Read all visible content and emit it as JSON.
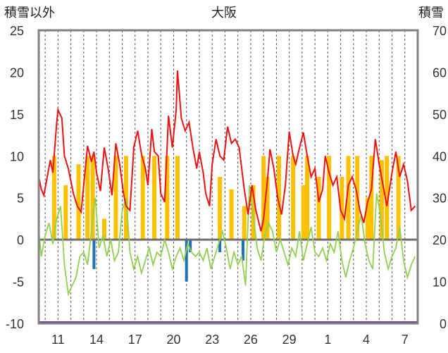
{
  "chart_data": {
    "type": "line",
    "title": "大阪",
    "y_left_label": "積雪以外",
    "y_right_label": "積雪",
    "y_left_ticks": [
      "25",
      "20",
      "15",
      "10",
      "5",
      "0",
      "-5",
      "-10"
    ],
    "y_right_ticks": [
      "70",
      "60",
      "50",
      "40",
      "30",
      "20",
      "10",
      "0"
    ],
    "x_ticks": [
      "11",
      "14",
      "17",
      "20",
      "23",
      "26",
      "29",
      "1",
      "4",
      "7"
    ],
    "y_left_range": [
      -10,
      25
    ],
    "y_right_range": [
      0,
      70
    ],
    "grid": "vertical dashed",
    "colors": {
      "frame": "#808080",
      "zero_line": "#707070",
      "temperature": "#ee1111",
      "temp_diff": "#92d050",
      "sunshine": "#ffc000",
      "precip": "#1a6fb5",
      "snow": "#7030a0"
    },
    "series": [
      {
        "key": "temperature",
        "type": "line",
        "points": [
          [
            9.5,
            7.5
          ],
          [
            9.7,
            6.0
          ],
          [
            9.9,
            5.3
          ],
          [
            10.4,
            9.5
          ],
          [
            10.6,
            8.0
          ],
          [
            10.9,
            14.0
          ],
          [
            11.0,
            15.5
          ],
          [
            11.3,
            14.5
          ],
          [
            11.5,
            10.0
          ],
          [
            11.8,
            8.5
          ],
          [
            12.2,
            5.5
          ],
          [
            12.5,
            4.0
          ],
          [
            12.8,
            3.3
          ],
          [
            13.0,
            6.5
          ],
          [
            13.3,
            11.2
          ],
          [
            13.6,
            9.3
          ],
          [
            13.8,
            10.5
          ],
          [
            14.0,
            8.0
          ],
          [
            14.3,
            5.8
          ],
          [
            14.6,
            11.0
          ],
          [
            14.9,
            8.5
          ],
          [
            15.2,
            5.3
          ],
          [
            15.5,
            11.5
          ],
          [
            15.8,
            9.0
          ],
          [
            16.1,
            5.5
          ],
          [
            16.3,
            4.0
          ],
          [
            16.6,
            3.5
          ],
          [
            16.9,
            11.0
          ],
          [
            17.2,
            13.0
          ],
          [
            17.5,
            10.2
          ],
          [
            17.8,
            8.5
          ],
          [
            18.0,
            6.5
          ],
          [
            18.3,
            13.2
          ],
          [
            18.5,
            10.5
          ],
          [
            18.8,
            10.0
          ],
          [
            19.0,
            5.5
          ],
          [
            19.3,
            4.5
          ],
          [
            19.6,
            14.8
          ],
          [
            19.9,
            11.0
          ],
          [
            20.2,
            15.5
          ],
          [
            20.3,
            20.2
          ],
          [
            20.6,
            14.5
          ],
          [
            20.9,
            13.0
          ],
          [
            21.2,
            14.0
          ],
          [
            21.5,
            11.0
          ],
          [
            21.8,
            8.5
          ],
          [
            22.0,
            10.5
          ],
          [
            22.3,
            8.0
          ],
          [
            22.5,
            5.5
          ],
          [
            22.8,
            4.0
          ],
          [
            23.0,
            9.0
          ],
          [
            23.3,
            12.0
          ],
          [
            23.6,
            10.0
          ],
          [
            23.9,
            9.5
          ],
          [
            24.2,
            13.5
          ],
          [
            24.5,
            11.5
          ],
          [
            24.8,
            12.0
          ],
          [
            25.1,
            11.0
          ],
          [
            25.5,
            6.0
          ],
          [
            25.8,
            3.0
          ],
          [
            26.1,
            6.5
          ],
          [
            26.4,
            3.5
          ],
          [
            26.8,
            1.0
          ],
          [
            27.0,
            2.5
          ],
          [
            27.3,
            7.0
          ],
          [
            27.5,
            10.8
          ],
          [
            27.8,
            8.5
          ],
          [
            28.1,
            5.0
          ],
          [
            28.4,
            3.0
          ],
          [
            28.7,
            6.5
          ],
          [
            29.0,
            12.9
          ],
          [
            29.3,
            10.0
          ],
          [
            29.5,
            9.0
          ],
          [
            29.8,
            11.0
          ],
          [
            30.1,
            12.8
          ],
          [
            30.4,
            10.0
          ],
          [
            30.7,
            7.5
          ],
          [
            31.0,
            8.5
          ],
          [
            31.3,
            4.5
          ],
          [
            31.6,
            6.0
          ],
          [
            31.8,
            10.0
          ],
          [
            32.1,
            8.0
          ],
          [
            32.4,
            6.5
          ],
          [
            32.7,
            7.5
          ],
          [
            33.0,
            3.5
          ],
          [
            33.3,
            2.5
          ],
          [
            33.6,
            6.5
          ],
          [
            33.9,
            7.5
          ],
          [
            34.2,
            6.0
          ],
          [
            34.5,
            3.5
          ],
          [
            34.8,
            2.0
          ],
          [
            35.1,
            4.5
          ],
          [
            35.4,
            6.0
          ],
          [
            35.7,
            12.0
          ],
          [
            36.0,
            9.0
          ],
          [
            36.3,
            6.5
          ],
          [
            36.6,
            4.0
          ],
          [
            37.0,
            8.0
          ],
          [
            37.3,
            10.5
          ],
          [
            37.6,
            7.5
          ],
          [
            37.9,
            9.0
          ],
          [
            38.2,
            7.0
          ],
          [
            38.5,
            3.5
          ],
          [
            38.8,
            4.0
          ]
        ]
      },
      {
        "key": "temp_diff",
        "type": "line",
        "points": [
          [
            9.5,
            1.0
          ],
          [
            9.7,
            -2.0
          ],
          [
            10.0,
            0.5
          ],
          [
            10.3,
            2.0
          ],
          [
            10.6,
            -0.5
          ],
          [
            10.9,
            2.5
          ],
          [
            11.2,
            4.0
          ],
          [
            11.5,
            -3.0
          ],
          [
            11.8,
            -6.5
          ],
          [
            12.1,
            -5.5
          ],
          [
            12.4,
            -4.5
          ],
          [
            12.7,
            -2.0
          ],
          [
            13.0,
            -1.5
          ],
          [
            13.3,
            -3.0
          ],
          [
            13.6,
            1.0
          ],
          [
            13.9,
            5.0
          ],
          [
            14.2,
            -1.0
          ],
          [
            14.5,
            0.5
          ],
          [
            14.8,
            -2.0
          ],
          [
            15.1,
            0.0
          ],
          [
            15.4,
            -2.5
          ],
          [
            15.7,
            -1.5
          ],
          [
            16.0,
            3.5
          ],
          [
            16.3,
            5.0
          ],
          [
            16.6,
            -1.5
          ],
          [
            16.9,
            -3.5
          ],
          [
            17.2,
            -2.0
          ],
          [
            17.5,
            -4.0
          ],
          [
            17.8,
            -2.5
          ],
          [
            18.1,
            -1.0
          ],
          [
            18.4,
            -3.0
          ],
          [
            18.7,
            -1.5
          ],
          [
            19.0,
            -2.0
          ],
          [
            19.3,
            0.0
          ],
          [
            19.6,
            -1.5
          ],
          [
            19.9,
            -3.5
          ],
          [
            20.2,
            -2.0
          ],
          [
            20.5,
            -1.0
          ],
          [
            20.8,
            -2.5
          ],
          [
            21.1,
            -0.5
          ],
          [
            21.4,
            -1.5
          ],
          [
            21.7,
            -2.0
          ],
          [
            22.0,
            -1.5
          ],
          [
            22.3,
            -2.5
          ],
          [
            22.6,
            -1.0
          ],
          [
            22.9,
            -3.5
          ],
          [
            23.2,
            -2.0
          ],
          [
            23.5,
            -0.5
          ],
          [
            23.8,
            1.0
          ],
          [
            24.1,
            -1.0
          ],
          [
            24.4,
            -3.5
          ],
          [
            24.7,
            -1.5
          ],
          [
            25.0,
            -3.0
          ],
          [
            25.3,
            -2.0
          ],
          [
            25.6,
            -5.5
          ],
          [
            25.9,
            6.5
          ],
          [
            26.2,
            3.0
          ],
          [
            26.5,
            -1.0
          ],
          [
            26.8,
            -2.5
          ],
          [
            27.1,
            0.5
          ],
          [
            27.4,
            2.0
          ],
          [
            27.7,
            1.0
          ],
          [
            28.0,
            -1.5
          ],
          [
            28.3,
            0.0
          ],
          [
            28.6,
            -1.5
          ],
          [
            28.9,
            -3.0
          ],
          [
            29.2,
            -1.0
          ],
          [
            29.5,
            -2.0
          ],
          [
            29.8,
            1.0
          ],
          [
            30.1,
            -2.5
          ],
          [
            30.4,
            -0.5
          ],
          [
            30.7,
            1.5
          ],
          [
            31.0,
            -1.5
          ],
          [
            31.3,
            -2.0
          ],
          [
            31.6,
            -1.0
          ],
          [
            31.9,
            -2.5
          ],
          [
            32.2,
            -0.5
          ],
          [
            32.5,
            -1.5
          ],
          [
            32.8,
            1.0
          ],
          [
            33.1,
            -2.5
          ],
          [
            33.4,
            -4.5
          ],
          [
            33.7,
            -2.5
          ],
          [
            34.0,
            -1.0
          ],
          [
            34.3,
            1.0
          ],
          [
            34.6,
            3.0
          ],
          [
            34.9,
            -0.5
          ],
          [
            35.2,
            -2.5
          ],
          [
            35.5,
            -3.5
          ],
          [
            35.8,
            5.5
          ],
          [
            36.1,
            3.0
          ],
          [
            36.4,
            -1.5
          ],
          [
            36.7,
            -3.5
          ],
          [
            37.0,
            -2.0
          ],
          [
            37.3,
            -1.0
          ],
          [
            37.6,
            1.5
          ],
          [
            37.9,
            -2.5
          ],
          [
            38.2,
            -4.5
          ],
          [
            38.5,
            -3.0
          ],
          [
            38.8,
            -2.0
          ]
        ]
      },
      {
        "key": "sunshine",
        "type": "bar",
        "points": [
          [
            10.7,
            10.0
          ],
          [
            11.6,
            6.5
          ],
          [
            12.6,
            9.0
          ],
          [
            13.3,
            10.0
          ],
          [
            13.7,
            10.0
          ],
          [
            14.6,
            2.5
          ],
          [
            15.5,
            10.0
          ],
          [
            16.3,
            10.0
          ],
          [
            17.6,
            10.0
          ],
          [
            18.5,
            10.0
          ],
          [
            19.5,
            10.0
          ],
          [
            20.3,
            10.0
          ],
          [
            23.6,
            7.5
          ],
          [
            24.5,
            6.0
          ],
          [
            25.5,
            4.0
          ],
          [
            26.2,
            6.5
          ],
          [
            27.0,
            10.0
          ],
          [
            27.3,
            7.5
          ],
          [
            28.2,
            10.0
          ],
          [
            29.3,
            10.0
          ],
          [
            30.1,
            6.5
          ],
          [
            30.4,
            10.0
          ],
          [
            31.3,
            7.5
          ],
          [
            32.1,
            10.0
          ],
          [
            33.1,
            7.5
          ],
          [
            33.6,
            10.0
          ],
          [
            34.3,
            10.0
          ],
          [
            35.1,
            5.0
          ],
          [
            35.4,
            10.0
          ],
          [
            36.2,
            9.5
          ],
          [
            36.6,
            10.0
          ],
          [
            37.5,
            10.0
          ]
        ]
      },
      {
        "key": "precip",
        "type": "bar",
        "points": [
          [
            13.8,
            -3.5
          ],
          [
            21.0,
            -5.0
          ],
          [
            21.3,
            -1.5
          ],
          [
            23.6,
            -1.5
          ],
          [
            25.4,
            -2.5
          ]
        ]
      }
    ]
  }
}
